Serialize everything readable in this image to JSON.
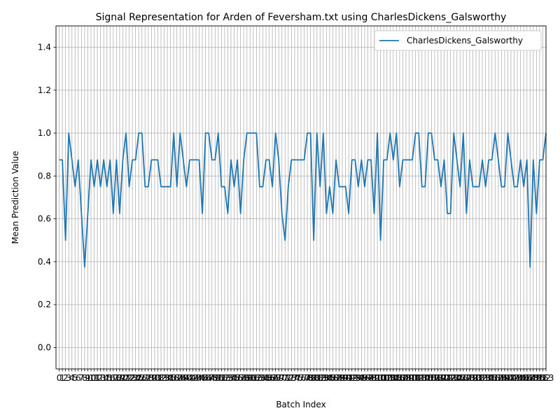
{
  "chart_data": {
    "type": "line",
    "title": "Signal Representation for Arden of Feversham.txt using CharlesDickens_Galsworthy",
    "xlabel": "Batch Index",
    "ylabel": "Mean Prediction Value",
    "xlim": [
      -1,
      153
    ],
    "ylim": [
      -0.1,
      1.5
    ],
    "yticks": [
      "0.0",
      "0.2",
      "0.4",
      "0.6",
      "0.8",
      "1.0",
      "1.2",
      "1.4"
    ],
    "grid": true,
    "legend": "top-right",
    "color": "#1f77b4",
    "series": [
      {
        "name": "CharlesDickens_Galsworthy",
        "values": [
          0.875,
          0.875,
          0.5,
          1.0,
          0.875,
          0.75,
          0.875,
          0.625,
          0.375,
          0.625,
          0.875,
          0.75,
          0.875,
          0.75,
          0.875,
          0.75,
          0.875,
          0.625,
          0.875,
          0.625,
          0.875,
          1.0,
          0.75,
          0.875,
          0.875,
          1.0,
          1.0,
          0.75,
          0.75,
          0.875,
          0.875,
          0.875,
          0.75,
          0.75,
          0.75,
          0.75,
          1.0,
          0.75,
          1.0,
          0.875,
          0.75,
          0.875,
          0.875,
          0.875,
          0.875,
          0.625,
          1.0,
          1.0,
          0.875,
          0.875,
          1.0,
          0.75,
          0.75,
          0.625,
          0.875,
          0.75,
          0.875,
          0.625,
          0.875,
          1.0,
          1.0,
          1.0,
          1.0,
          0.75,
          0.75,
          0.875,
          0.875,
          0.75,
          1.0,
          0.875,
          0.625,
          0.5,
          0.75,
          0.875,
          0.875,
          0.875,
          0.875,
          0.875,
          1.0,
          1.0,
          0.5,
          1.0,
          0.75,
          1.0,
          0.625,
          0.75,
          0.625,
          0.875,
          0.75,
          0.75,
          0.75,
          0.625,
          0.875,
          0.875,
          0.75,
          0.875,
          0.75,
          0.875,
          0.875,
          0.625,
          1.0,
          0.5,
          0.875,
          0.875,
          1.0,
          0.875,
          1.0,
          0.75,
          0.875,
          0.875,
          0.875,
          0.875,
          1.0,
          1.0,
          0.75,
          0.75,
          1.0,
          1.0,
          0.875,
          0.875,
          0.75,
          0.875,
          0.625,
          0.625,
          1.0,
          0.875,
          0.75,
          1.0,
          0.625,
          0.875,
          0.75,
          0.75,
          0.75,
          0.875,
          0.75,
          0.875,
          0.875,
          1.0,
          0.875,
          0.75,
          0.75,
          1.0,
          0.875,
          0.75,
          0.75,
          0.875,
          0.75,
          0.875,
          0.375,
          0.875,
          0.625,
          0.875,
          0.875,
          1.0
        ]
      }
    ]
  }
}
